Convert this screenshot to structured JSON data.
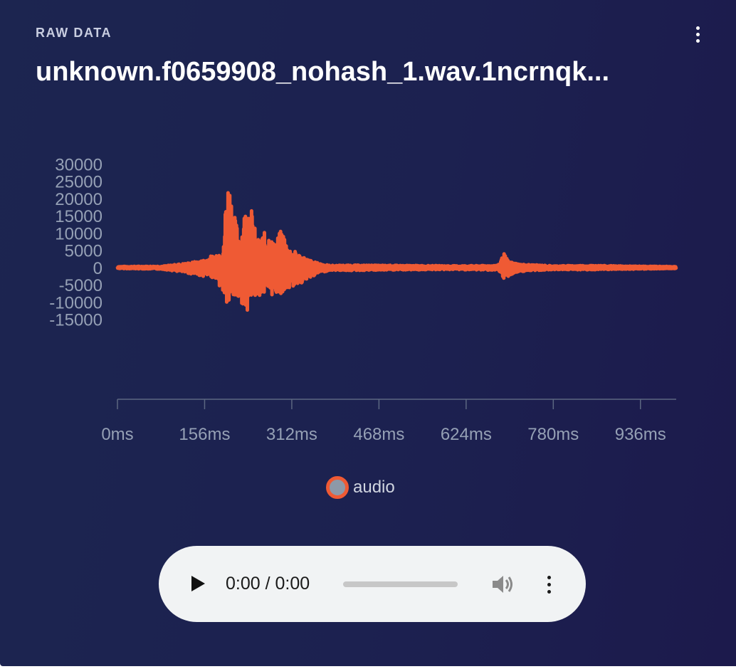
{
  "header": {
    "eyebrow": "RAW DATA",
    "title": "unknown.f0659908_nohash_1.wav.1ncrnqk...",
    "menu_icon": "more-vertical-icon"
  },
  "chart_data": {
    "type": "line",
    "x_unit": "ms",
    "x_range": [
      0,
      1000
    ],
    "x_ticks": [
      0,
      156,
      312,
      468,
      624,
      780,
      936
    ],
    "x_tick_labels": [
      "0ms",
      "156ms",
      "312ms",
      "468ms",
      "624ms",
      "780ms",
      "936ms"
    ],
    "y_range": [
      -15000,
      30000
    ],
    "y_ticks": [
      30000,
      25000,
      20000,
      15000,
      10000,
      5000,
      0,
      -5000,
      -10000,
      -15000
    ],
    "y_tick_labels": [
      "30000",
      "25000",
      "20000",
      "15000",
      "10000",
      "5000",
      "0",
      "-5000",
      "-10000",
      "-15000"
    ],
    "grid": false,
    "legend_position": "bottom-center",
    "series": [
      {
        "name": "audio",
        "color": "#ef5a34",
        "marker_fill": "#8d99a8",
        "envelope": [
          {
            "t": 0,
            "max": 300,
            "min": -300
          },
          {
            "t": 80,
            "max": 400,
            "min": -500
          },
          {
            "t": 120,
            "max": 1200,
            "min": -1500
          },
          {
            "t": 150,
            "max": 2000,
            "min": -2500
          },
          {
            "t": 175,
            "max": 4000,
            "min": -3000
          },
          {
            "t": 190,
            "max": 6500,
            "min": -8000
          },
          {
            "t": 195,
            "max": 26000,
            "min": -11000
          },
          {
            "t": 202,
            "max": 25000,
            "min": -12000
          },
          {
            "t": 208,
            "max": 16000,
            "min": -9000
          },
          {
            "t": 220,
            "max": 9000,
            "min": -10000
          },
          {
            "t": 232,
            "max": 21000,
            "min": -12500
          },
          {
            "t": 240,
            "max": 17000,
            "min": -10000
          },
          {
            "t": 250,
            "max": 8000,
            "min": -8000
          },
          {
            "t": 268,
            "max": 11000,
            "min": -8500
          },
          {
            "t": 280,
            "max": 7000,
            "min": -8000
          },
          {
            "t": 295,
            "max": 11500,
            "min": -7500
          },
          {
            "t": 305,
            "max": 6000,
            "min": -6500
          },
          {
            "t": 320,
            "max": 4500,
            "min": -5000
          },
          {
            "t": 340,
            "max": 2500,
            "min": -4000
          },
          {
            "t": 355,
            "max": 1500,
            "min": -2000
          },
          {
            "t": 380,
            "max": 600,
            "min": -800
          },
          {
            "t": 420,
            "max": 700,
            "min": -900
          },
          {
            "t": 520,
            "max": 600,
            "min": -700
          },
          {
            "t": 600,
            "max": 500,
            "min": -600
          },
          {
            "t": 680,
            "max": 600,
            "min": -800
          },
          {
            "t": 692,
            "max": 4000,
            "min": -3800
          },
          {
            "t": 700,
            "max": 1800,
            "min": -2500
          },
          {
            "t": 720,
            "max": 1000,
            "min": -1200
          },
          {
            "t": 780,
            "max": 500,
            "min": -600
          },
          {
            "t": 850,
            "max": 600,
            "min": -700
          },
          {
            "t": 920,
            "max": 400,
            "min": -500
          },
          {
            "t": 1000,
            "max": 300,
            "min": -300
          }
        ]
      }
    ]
  },
  "player": {
    "play_icon": "play-icon",
    "time": "0:00 / 0:00",
    "progress": 0,
    "volume_icon": "volume-icon",
    "menu_icon": "more-vertical-icon"
  }
}
